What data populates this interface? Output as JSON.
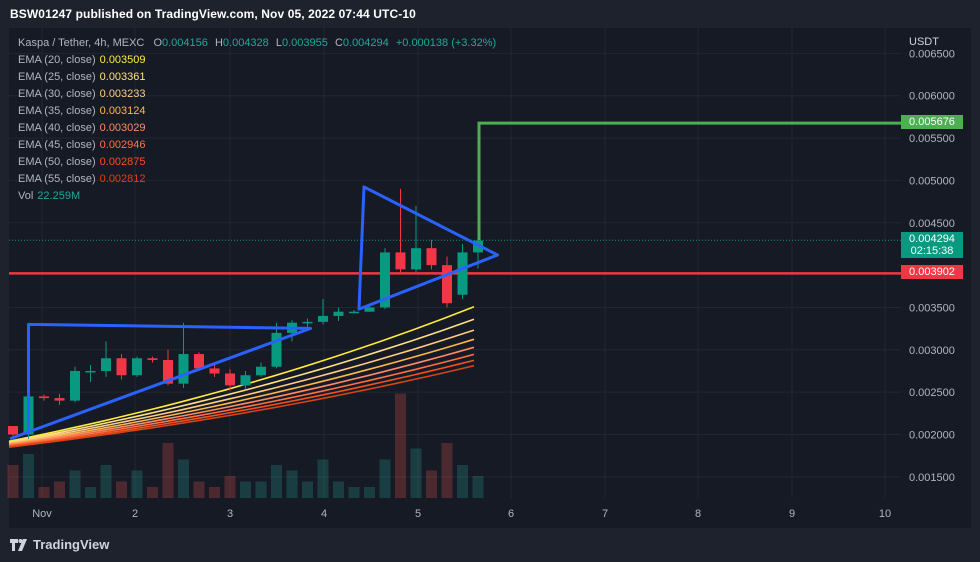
{
  "header": {
    "published_text": "BSW01247 published on TradingView.com, Nov 05, 2022 07:44 UTC-10"
  },
  "footer": {
    "brand": "TradingView"
  },
  "legend": {
    "symbol": "Kaspa / Tether, 4h, MEXC",
    "ohlc": {
      "o_label": "O",
      "o": "0.004156",
      "h_label": "H",
      "h": "0.004328",
      "l_label": "L",
      "l": "0.003955",
      "c_label": "C",
      "c": "0.004294",
      "change": "+0.000138 (+3.32%)"
    },
    "emas": [
      {
        "label": "EMA (20, close)",
        "value": "0.003509",
        "color": "#ffeb3b"
      },
      {
        "label": "EMA (25, close)",
        "value": "0.003361",
        "color": "#ffe082"
      },
      {
        "label": "EMA (30, close)",
        "value": "0.003233",
        "color": "#ffcc80"
      },
      {
        "label": "EMA (35, close)",
        "value": "0.003124",
        "color": "#ffb74d"
      },
      {
        "label": "EMA (40, close)",
        "value": "0.003029",
        "color": "#ff8a65"
      },
      {
        "label": "EMA (45, close)",
        "value": "0.002946",
        "color": "#ff7043"
      },
      {
        "label": "EMA (50, close)",
        "value": "0.002875",
        "color": "#f4511e"
      },
      {
        "label": "EMA (55, close)",
        "value": "0.002812",
        "color": "#d84315"
      }
    ],
    "vol": {
      "label": "Vol",
      "value": "22.259M"
    }
  },
  "price_axis": {
    "currency": "USDT",
    "ticks": [
      "0.006500",
      "0.006000",
      "0.005500",
      "0.005000",
      "0.004500",
      "0.003500",
      "0.003000",
      "0.002500",
      "0.002000",
      "0.001500"
    ],
    "tags": [
      {
        "value": "0.005676",
        "color": "#4caf50"
      },
      {
        "value": "0.004294",
        "sub": "02:15:38",
        "color": "#089981"
      },
      {
        "value": "0.003902",
        "color": "#f23645"
      }
    ]
  },
  "time_axis": {
    "ticks": [
      "Nov",
      "2",
      "3",
      "4",
      "5",
      "6",
      "7",
      "8",
      "9",
      "10"
    ]
  },
  "chart_data": {
    "type": "candlestick",
    "title": "Kaspa / Tether, 4h, MEXC",
    "ylabel": "USDT",
    "ylim": [
      0.00125,
      0.0068
    ],
    "x_ticks": [
      "Nov",
      "2",
      "3",
      "4",
      "5",
      "6",
      "7",
      "8",
      "9",
      "10"
    ],
    "candles": [
      [
        0.0021,
        0.00205,
        0.00198,
        0.002
      ],
      [
        0.002,
        0.0025,
        0.00195,
        0.00245
      ],
      [
        0.00245,
        0.00247,
        0.0024,
        0.00243
      ],
      [
        0.00243,
        0.00248,
        0.00235,
        0.0024
      ],
      [
        0.0024,
        0.0028,
        0.00238,
        0.00275
      ],
      [
        0.00275,
        0.00282,
        0.00262,
        0.00275
      ],
      [
        0.00275,
        0.0031,
        0.00268,
        0.0029
      ],
      [
        0.0029,
        0.00295,
        0.00265,
        0.0027
      ],
      [
        0.0027,
        0.00292,
        0.00268,
        0.0029
      ],
      [
        0.0029,
        0.00292,
        0.00285,
        0.00288
      ],
      [
        0.00288,
        0.003,
        0.00258,
        0.0026
      ],
      [
        0.0026,
        0.00332,
        0.00255,
        0.00295
      ],
      [
        0.00295,
        0.00297,
        0.00275,
        0.00278
      ],
      [
        0.00278,
        0.00283,
        0.00268,
        0.00272
      ],
      [
        0.00272,
        0.00277,
        0.00252,
        0.00258
      ],
      [
        0.00258,
        0.00275,
        0.00254,
        0.0027
      ],
      [
        0.0027,
        0.00285,
        0.00268,
        0.0028
      ],
      [
        0.0028,
        0.00332,
        0.00278,
        0.0032
      ],
      [
        0.0032,
        0.00335,
        0.0031,
        0.00332
      ],
      [
        0.00332,
        0.00337,
        0.00322,
        0.00333
      ],
      [
        0.00333,
        0.0036,
        0.0033,
        0.0034
      ],
      [
        0.0034,
        0.0035,
        0.00334,
        0.00345
      ],
      [
        0.00345,
        0.00347,
        0.00343,
        0.00345
      ],
      [
        0.00345,
        0.00352,
        0.00345,
        0.0035
      ],
      [
        0.0035,
        0.0042,
        0.00348,
        0.00415
      ],
      [
        0.00415,
        0.0049,
        0.0039,
        0.00395
      ],
      [
        0.00395,
        0.0047,
        0.00392,
        0.0042
      ],
      [
        0.0042,
        0.0043,
        0.00395,
        0.004
      ],
      [
        0.004,
        0.0041,
        0.0035,
        0.00355
      ],
      [
        0.00365,
        0.00425,
        0.0036,
        0.00415
      ],
      [
        0.00415,
        0.00433,
        0.00396,
        0.00429
      ]
    ],
    "ema_series": [
      {
        "name": "EMA (20, close)",
        "color": "#ffeb3b",
        "start": 0.00192,
        "end": 0.003509
      },
      {
        "name": "EMA (25, close)",
        "color": "#ffe082",
        "start": 0.00191,
        "end": 0.003361
      },
      {
        "name": "EMA (30, close)",
        "color": "#ffcc80",
        "start": 0.0019,
        "end": 0.003233
      },
      {
        "name": "EMA (35, close)",
        "color": "#ffb74d",
        "start": 0.00189,
        "end": 0.003124
      },
      {
        "name": "EMA (40, close)",
        "color": "#ff8a65",
        "start": 0.00188,
        "end": 0.003029
      },
      {
        "name": "EMA (45, close)",
        "color": "#ff7043",
        "start": 0.00187,
        "end": 0.002946
      },
      {
        "name": "EMA (50, close)",
        "color": "#f4511e",
        "start": 0.00186,
        "end": 0.002875
      },
      {
        "name": "EMA (55, close)",
        "color": "#d84315",
        "start": 0.00185,
        "end": 0.002812
      }
    ],
    "volume": [
      0.3,
      0.4,
      0.1,
      0.15,
      0.25,
      0.1,
      0.3,
      0.15,
      0.25,
      0.1,
      0.5,
      0.35,
      0.15,
      0.1,
      0.2,
      0.15,
      0.15,
      0.3,
      0.25,
      0.15,
      0.35,
      0.15,
      0.1,
      0.1,
      0.35,
      0.95,
      0.45,
      0.25,
      0.5,
      0.3,
      0.2
    ],
    "horizontal_lines": [
      {
        "price": 0.003902,
        "color": "#f23645"
      },
      {
        "price": 0.004294,
        "color": "#089981",
        "style": "dotted"
      }
    ],
    "projection": [
      {
        "price": 0.004294,
        "at_candle": 30
      },
      {
        "price": 0.005676,
        "at_candle": 30
      }
    ],
    "drawings": {
      "ascending_triangle": {
        "top": 0.0033,
        "bottom_left": 0.00195,
        "color": "#2962ff"
      },
      "pennant": {
        "top": 0.0049,
        "bottom": 0.00348,
        "apex": 0.00412,
        "color": "#2962ff"
      }
    },
    "grid": true
  }
}
